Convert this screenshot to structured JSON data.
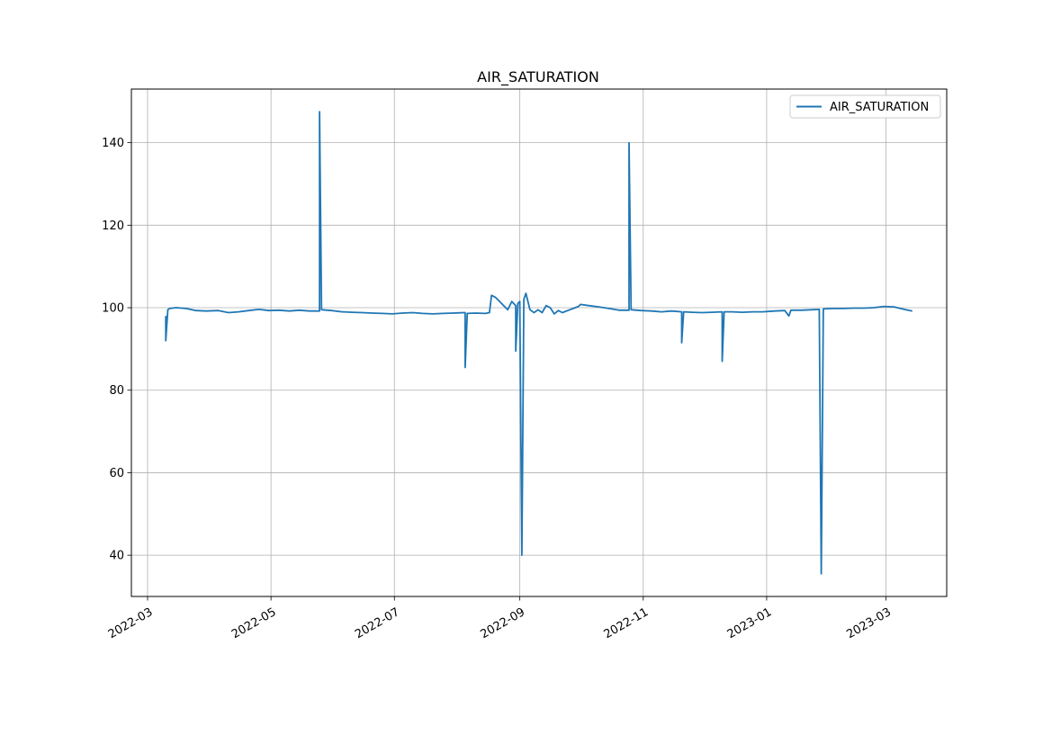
{
  "chart_data": {
    "type": "line",
    "title": "AIR_SATURATION",
    "xlabel": "",
    "ylabel": "",
    "xlim": [
      "2022-02-21",
      "2023-03-31"
    ],
    "ylim": [
      30,
      153
    ],
    "grid": true,
    "legend_position": "top-right",
    "x_ticks": [
      "2022-03-01",
      "2022-05-01",
      "2022-07-01",
      "2022-09-01",
      "2022-11-01",
      "2023-01-01",
      "2023-03-01"
    ],
    "x_tick_labels": [
      "2022-03",
      "2022-05",
      "2022-07",
      "2022-09",
      "2022-11",
      "2023-01",
      "2023-03"
    ],
    "y_ticks": [
      40,
      60,
      80,
      100,
      120,
      140
    ],
    "y_tick_labels": [
      "40",
      "60",
      "80",
      "100",
      "120",
      "140"
    ],
    "series": [
      {
        "name": "AIR_SATURATION",
        "color": "#1f77b4",
        "points": [
          [
            "2022-03-10",
            98.0
          ],
          [
            "2022-03-10",
            92.0
          ],
          [
            "2022-03-11",
            99.5
          ],
          [
            "2022-03-12",
            99.8
          ],
          [
            "2022-03-15",
            100.0
          ],
          [
            "2022-03-20",
            99.8
          ],
          [
            "2022-03-25",
            99.3
          ],
          [
            "2022-03-30",
            99.2
          ],
          [
            "2022-04-05",
            99.3
          ],
          [
            "2022-04-10",
            98.8
          ],
          [
            "2022-04-15",
            99.0
          ],
          [
            "2022-04-20",
            99.3
          ],
          [
            "2022-04-25",
            99.6
          ],
          [
            "2022-04-30",
            99.3
          ],
          [
            "2022-05-05",
            99.4
          ],
          [
            "2022-05-10",
            99.2
          ],
          [
            "2022-05-15",
            99.4
          ],
          [
            "2022-05-20",
            99.2
          ],
          [
            "2022-05-25",
            99.2
          ],
          [
            "2022-05-25",
            147.5
          ],
          [
            "2022-05-26",
            99.5
          ],
          [
            "2022-05-31",
            99.3
          ],
          [
            "2022-06-05",
            99.0
          ],
          [
            "2022-06-10",
            98.9
          ],
          [
            "2022-06-15",
            98.8
          ],
          [
            "2022-06-20",
            98.7
          ],
          [
            "2022-06-25",
            98.6
          ],
          [
            "2022-06-30",
            98.5
          ],
          [
            "2022-07-05",
            98.7
          ],
          [
            "2022-07-10",
            98.8
          ],
          [
            "2022-07-15",
            98.6
          ],
          [
            "2022-07-20",
            98.5
          ],
          [
            "2022-07-25",
            98.6
          ],
          [
            "2022-07-30",
            98.7
          ],
          [
            "2022-08-05",
            98.8
          ],
          [
            "2022-08-05",
            85.5
          ],
          [
            "2022-08-06",
            98.6
          ],
          [
            "2022-08-10",
            98.7
          ],
          [
            "2022-08-15",
            98.6
          ],
          [
            "2022-08-17",
            98.8
          ],
          [
            "2022-08-18",
            103.0
          ],
          [
            "2022-08-20",
            102.5
          ],
          [
            "2022-08-22",
            101.5
          ],
          [
            "2022-08-24",
            100.5
          ],
          [
            "2022-08-26",
            99.5
          ],
          [
            "2022-08-28",
            101.5
          ],
          [
            "2022-08-30",
            100.5
          ],
          [
            "2022-08-30",
            89.5
          ],
          [
            "2022-08-31",
            101.0
          ],
          [
            "2022-09-01",
            101.5
          ],
          [
            "2022-09-02",
            40.0
          ],
          [
            "2022-09-03",
            102.0
          ],
          [
            "2022-09-04",
            103.5
          ],
          [
            "2022-09-06",
            99.5
          ],
          [
            "2022-09-08",
            98.8
          ],
          [
            "2022-09-10",
            99.5
          ],
          [
            "2022-09-12",
            98.8
          ],
          [
            "2022-09-14",
            100.5
          ],
          [
            "2022-09-16",
            100.0
          ],
          [
            "2022-09-18",
            98.5
          ],
          [
            "2022-09-20",
            99.3
          ],
          [
            "2022-09-22",
            98.8
          ],
          [
            "2022-09-30",
            100.3
          ],
          [
            "2022-10-01",
            100.8
          ],
          [
            "2022-10-05",
            100.5
          ],
          [
            "2022-10-10",
            100.2
          ],
          [
            "2022-10-15",
            99.8
          ],
          [
            "2022-10-20",
            99.4
          ],
          [
            "2022-10-25",
            99.4
          ],
          [
            "2022-10-25",
            140.0
          ],
          [
            "2022-10-26",
            99.5
          ],
          [
            "2022-10-31",
            99.3
          ],
          [
            "2022-11-05",
            99.2
          ],
          [
            "2022-11-10",
            99.0
          ],
          [
            "2022-11-15",
            99.2
          ],
          [
            "2022-11-20",
            99.0
          ],
          [
            "2022-11-20",
            91.5
          ],
          [
            "2022-11-21",
            99.0
          ],
          [
            "2022-11-25",
            98.9
          ],
          [
            "2022-11-30",
            98.8
          ],
          [
            "2022-12-05",
            98.9
          ],
          [
            "2022-12-10",
            99.0
          ],
          [
            "2022-12-10",
            87.0
          ],
          [
            "2022-12-11",
            99.0
          ],
          [
            "2022-12-15",
            99.0
          ],
          [
            "2022-12-20",
            98.9
          ],
          [
            "2022-12-25",
            99.0
          ],
          [
            "2022-12-30",
            99.0
          ],
          [
            "2023-01-05",
            99.2
          ],
          [
            "2023-01-10",
            99.3
          ],
          [
            "2023-01-12",
            98.0
          ],
          [
            "2023-01-13",
            99.4
          ],
          [
            "2023-01-18",
            99.4
          ],
          [
            "2023-01-23",
            99.5
          ],
          [
            "2023-01-27",
            99.6
          ],
          [
            "2023-01-28",
            35.5
          ],
          [
            "2023-01-29",
            99.7
          ],
          [
            "2023-02-03",
            99.8
          ],
          [
            "2023-02-08",
            99.8
          ],
          [
            "2023-02-13",
            99.9
          ],
          [
            "2023-02-18",
            99.9
          ],
          [
            "2023-02-23",
            100.0
          ],
          [
            "2023-02-28",
            100.3
          ],
          [
            "2023-03-05",
            100.2
          ],
          [
            "2023-03-10",
            99.6
          ],
          [
            "2023-03-14",
            99.2
          ]
        ]
      }
    ]
  }
}
